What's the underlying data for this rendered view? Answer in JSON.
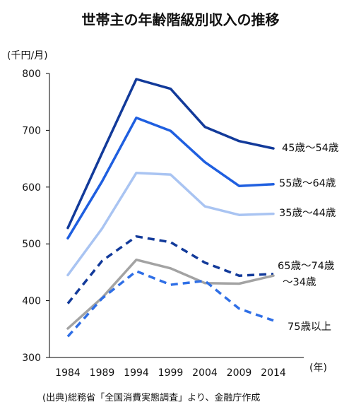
{
  "chart_data": {
    "type": "line",
    "title": "世帯主の年齢階級別収入の推移",
    "ylabel": "(千円/月)",
    "xlabel": "(年)",
    "categories": [
      "1984",
      "1989",
      "1994",
      "1999",
      "2004",
      "2009",
      "2014"
    ],
    "ylim": [
      300,
      800
    ],
    "yticks": [
      300,
      400,
      500,
      600,
      700,
      800
    ],
    "grid": false,
    "legend": "direct labels at right end of each line",
    "series": [
      {
        "name": "45歳～54歳",
        "values": [
          528,
          660,
          790,
          773,
          706,
          681,
          668
        ],
        "color": "#123a9a",
        "dash": false
      },
      {
        "name": "55歳～64歳",
        "values": [
          510,
          610,
          722,
          699,
          644,
          602,
          605
        ],
        "color": "#1f5fe0",
        "dash": false
      },
      {
        "name": "35歳～44歳",
        "values": [
          445,
          527,
          625,
          622,
          566,
          551,
          553
        ],
        "color": "#a9c4f2",
        "dash": false
      },
      {
        "name": "65歳～74歳",
        "values": [
          395,
          470,
          513,
          503,
          467,
          444,
          447
        ],
        "color": "#123a9a",
        "dash": true
      },
      {
        "name": "～34歳",
        "values": [
          351,
          405,
          472,
          457,
          431,
          430,
          444
        ],
        "color": "#a3a3a3",
        "dash": false
      },
      {
        "name": "75歳以上",
        "values": [
          337,
          404,
          452,
          428,
          435,
          386,
          365
        ],
        "color": "#2f6fe6",
        "dash": true
      }
    ],
    "source": "(出典)総務省「全国消費実態調査」より、金融庁作成"
  }
}
